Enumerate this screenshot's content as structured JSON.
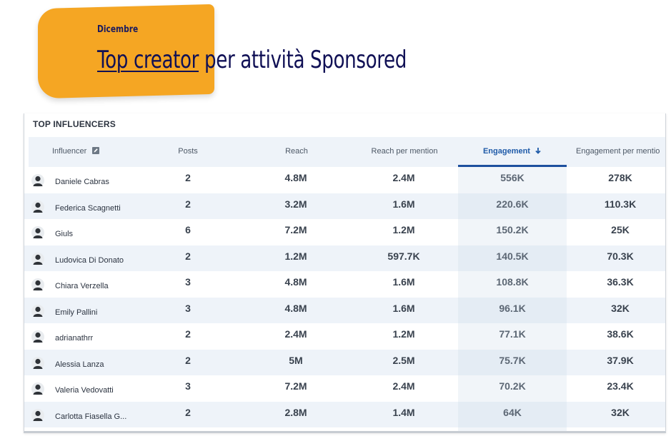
{
  "header": {
    "month": "Dicembre",
    "title_highlight": "Top creator",
    "title_rest": " per attività Sponsored"
  },
  "card": {
    "title": "TOP INFLUENCERS",
    "columns": {
      "influencer": "Influencer",
      "posts": "Posts",
      "reach": "Reach",
      "reach_per_mention": "Reach per mention",
      "engagement": "Engagement",
      "engagement_per_mention": "Engagement per mentio"
    },
    "sort_column": "engagement",
    "sort_direction": "descending"
  },
  "rows": [
    {
      "name": "Daniele Cabras",
      "posts": "2",
      "reach": "4.8M",
      "rpm": "2.4M",
      "eng": "556K",
      "epm": "278K"
    },
    {
      "name": "Federica Scagnetti",
      "posts": "2",
      "reach": "3.2M",
      "rpm": "1.6M",
      "eng": "220.6K",
      "epm": "110.3K"
    },
    {
      "name": "Giuls",
      "posts": "6",
      "reach": "7.2M",
      "rpm": "1.2M",
      "eng": "150.2K",
      "epm": "25K"
    },
    {
      "name": "Ludovica Di Donato",
      "posts": "2",
      "reach": "1.2M",
      "rpm": "597.7K",
      "eng": "140.5K",
      "epm": "70.3K"
    },
    {
      "name": "Chiara Verzella",
      "posts": "3",
      "reach": "4.8M",
      "rpm": "1.6M",
      "eng": "108.8K",
      "epm": "36.3K"
    },
    {
      "name": "Emily Pallini",
      "posts": "3",
      "reach": "4.8M",
      "rpm": "1.6M",
      "eng": "96.1K",
      "epm": "32K"
    },
    {
      "name": "adrianathrr",
      "posts": "2",
      "reach": "2.4M",
      "rpm": "1.2M",
      "eng": "77.1K",
      "epm": "38.6K"
    },
    {
      "name": "Alessia Lanza",
      "posts": "2",
      "reach": "5M",
      "rpm": "2.5M",
      "eng": "75.7K",
      "epm": "37.9K"
    },
    {
      "name": "Valeria Vedovatti",
      "posts": "3",
      "reach": "7.2M",
      "rpm": "2.4M",
      "eng": "70.2K",
      "epm": "23.4K"
    },
    {
      "name": "Carlotta Fiasella G...",
      "posts": "2",
      "reach": "2.8M",
      "rpm": "1.4M",
      "eng": "64K",
      "epm": "32K"
    }
  ],
  "colors": {
    "badge": "#f5a623",
    "title": "#101055",
    "header_bg": "#eef3f9",
    "active_sort": "#1d4f9e"
  },
  "icons": {
    "edit": "edit-icon",
    "sort": "arrow-down-icon",
    "avatar": "user-avatar-icon"
  }
}
